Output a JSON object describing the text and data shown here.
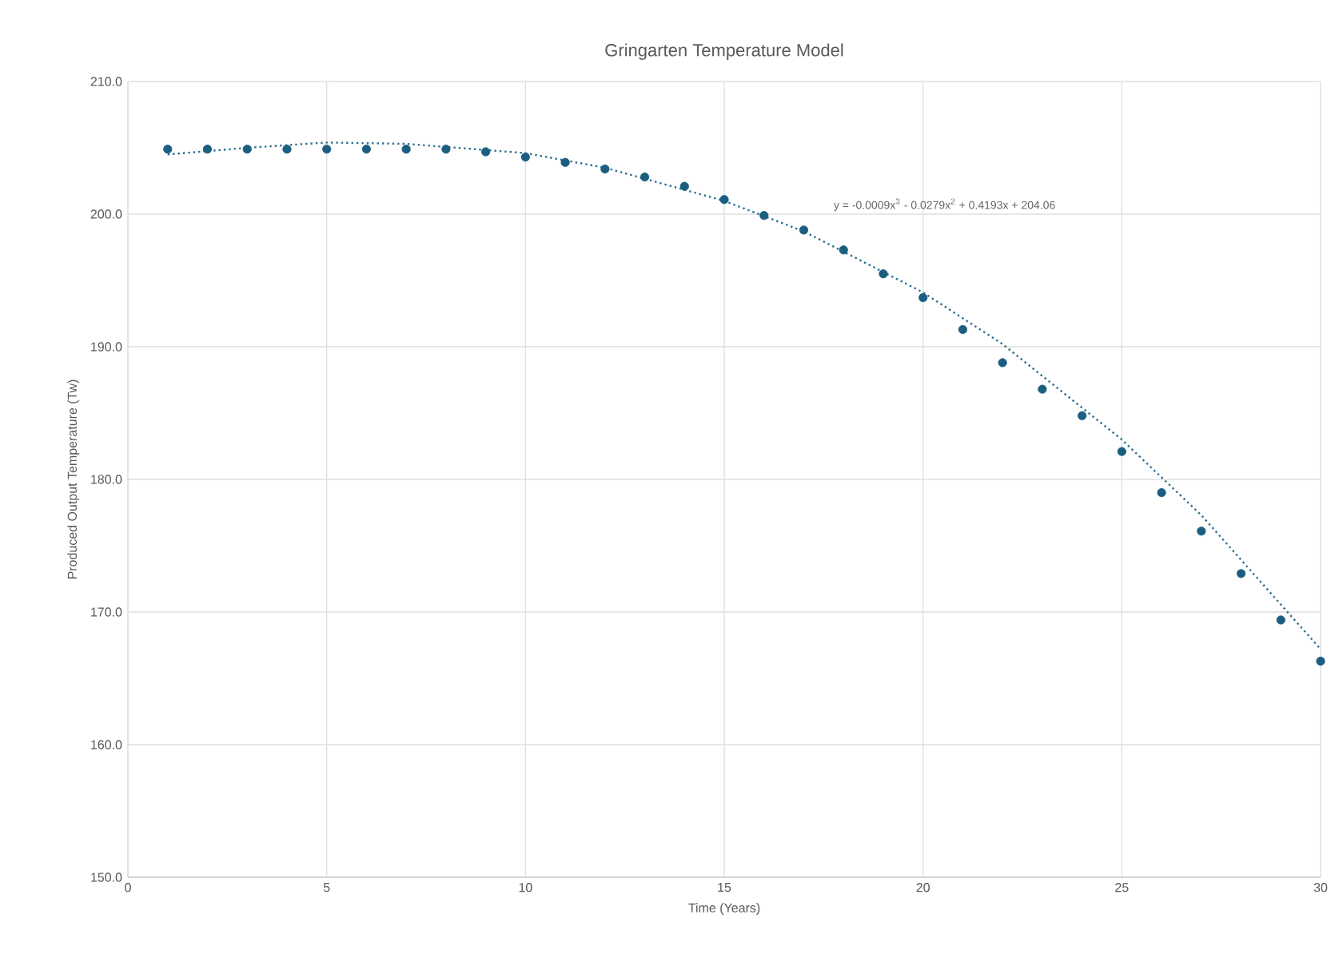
{
  "chart_data": {
    "type": "scatter",
    "title": "Gringarten Temperature Model",
    "xlabel": "Time (Years)",
    "ylabel": "Produced Output Temperature (Tw)",
    "xlim": [
      0,
      30
    ],
    "xticks": [
      0,
      5,
      10,
      15,
      20,
      25,
      30
    ],
    "ylim": [
      150,
      210
    ],
    "yticks": [
      {
        "value": 150,
        "label": "150.0"
      },
      {
        "value": 160,
        "label": "160.0"
      },
      {
        "value": 170,
        "label": "170.0"
      },
      {
        "value": 180,
        "label": "180.0"
      },
      {
        "value": 190,
        "label": "190.0"
      },
      {
        "value": 200,
        "label": "200.0"
      },
      {
        "value": 210,
        "label": "210.0"
      }
    ],
    "grid": true,
    "marker": "circle",
    "annotations": [
      "y = -0.0009x$^{3}$ - 0.0279x$^{2}$ + 0.4193x + 204.06"
    ],
    "series": [
      {
        "color": "#1b5e80",
        "x": [
          1,
          2,
          3,
          4,
          5,
          6,
          7,
          8,
          9,
          10,
          11,
          12,
          13,
          14,
          15,
          16,
          17,
          18,
          19,
          20,
          21,
          22,
          23,
          24,
          25,
          26,
          27,
          28,
          29,
          30
        ],
        "values": [
          204.9,
          204.9,
          204.9,
          204.9,
          204.9,
          204.9,
          204.9,
          204.9,
          204.7,
          204.3,
          203.9,
          203.4,
          202.8,
          202.1,
          201.1,
          199.9,
          198.8,
          197.3,
          195.5,
          193.7,
          191.3,
          188.8,
          186.8,
          184.8,
          182.1,
          179.0,
          176.1,
          172.9,
          169.4,
          166.3
        ]
      },
      {
        "type": "line",
        "color": "#2a6f92",
        "line_style": "dotted",
        "marker": "none",
        "x": [
          1,
          3,
          5,
          7,
          10,
          12,
          15,
          17,
          20,
          22,
          25,
          27,
          30
        ],
        "values": [
          204.5,
          205.0,
          205.4,
          205.3,
          204.6,
          203.5,
          201.0,
          198.7,
          194.1,
          190.2,
          183.0,
          177.3,
          167.2
        ]
      }
    ]
  }
}
